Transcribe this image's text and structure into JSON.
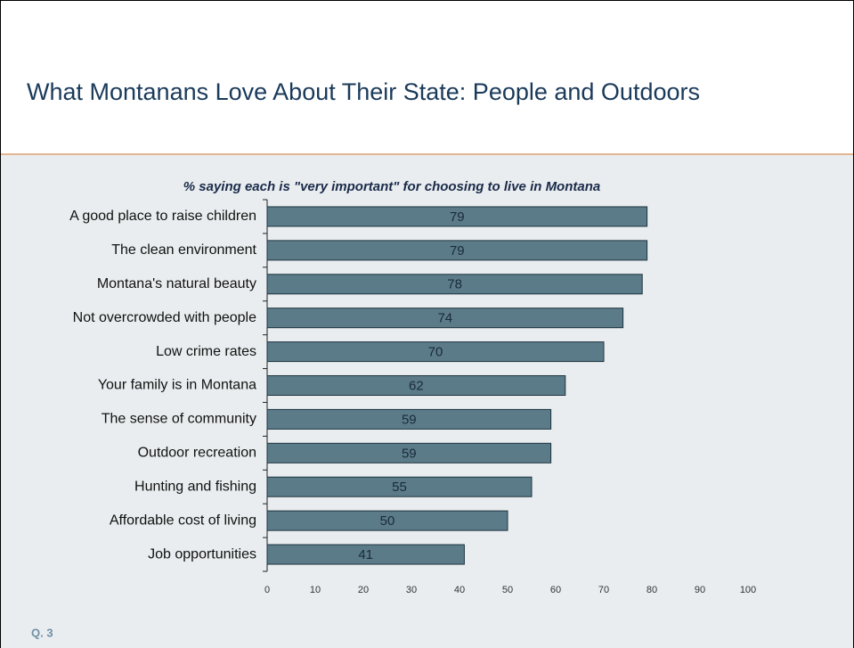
{
  "chart_data": {
    "type": "bar",
    "orientation": "horizontal",
    "title": "What Montanans Love About Their State: People and Outdoors",
    "subtitle": "% saying each is  \"very important\" for choosing to live in Montana",
    "footnote": "Q. 3",
    "categories": [
      "A good place to raise children",
      "The clean environment",
      "Montana's natural beauty",
      "Not overcrowded with people",
      "Low crime rates",
      "Your family is in Montana",
      "The sense of community",
      "Outdoor recreation",
      "Hunting and fishing",
      "Affordable cost of living",
      "Job opportunities"
    ],
    "values": [
      79,
      79,
      78,
      74,
      70,
      62,
      59,
      59,
      55,
      50,
      41
    ],
    "color": "#5b7b88",
    "xlim": [
      0,
      100
    ],
    "xticks": [
      0,
      10,
      20,
      30,
      40,
      50,
      60,
      70,
      80,
      90,
      100
    ]
  }
}
